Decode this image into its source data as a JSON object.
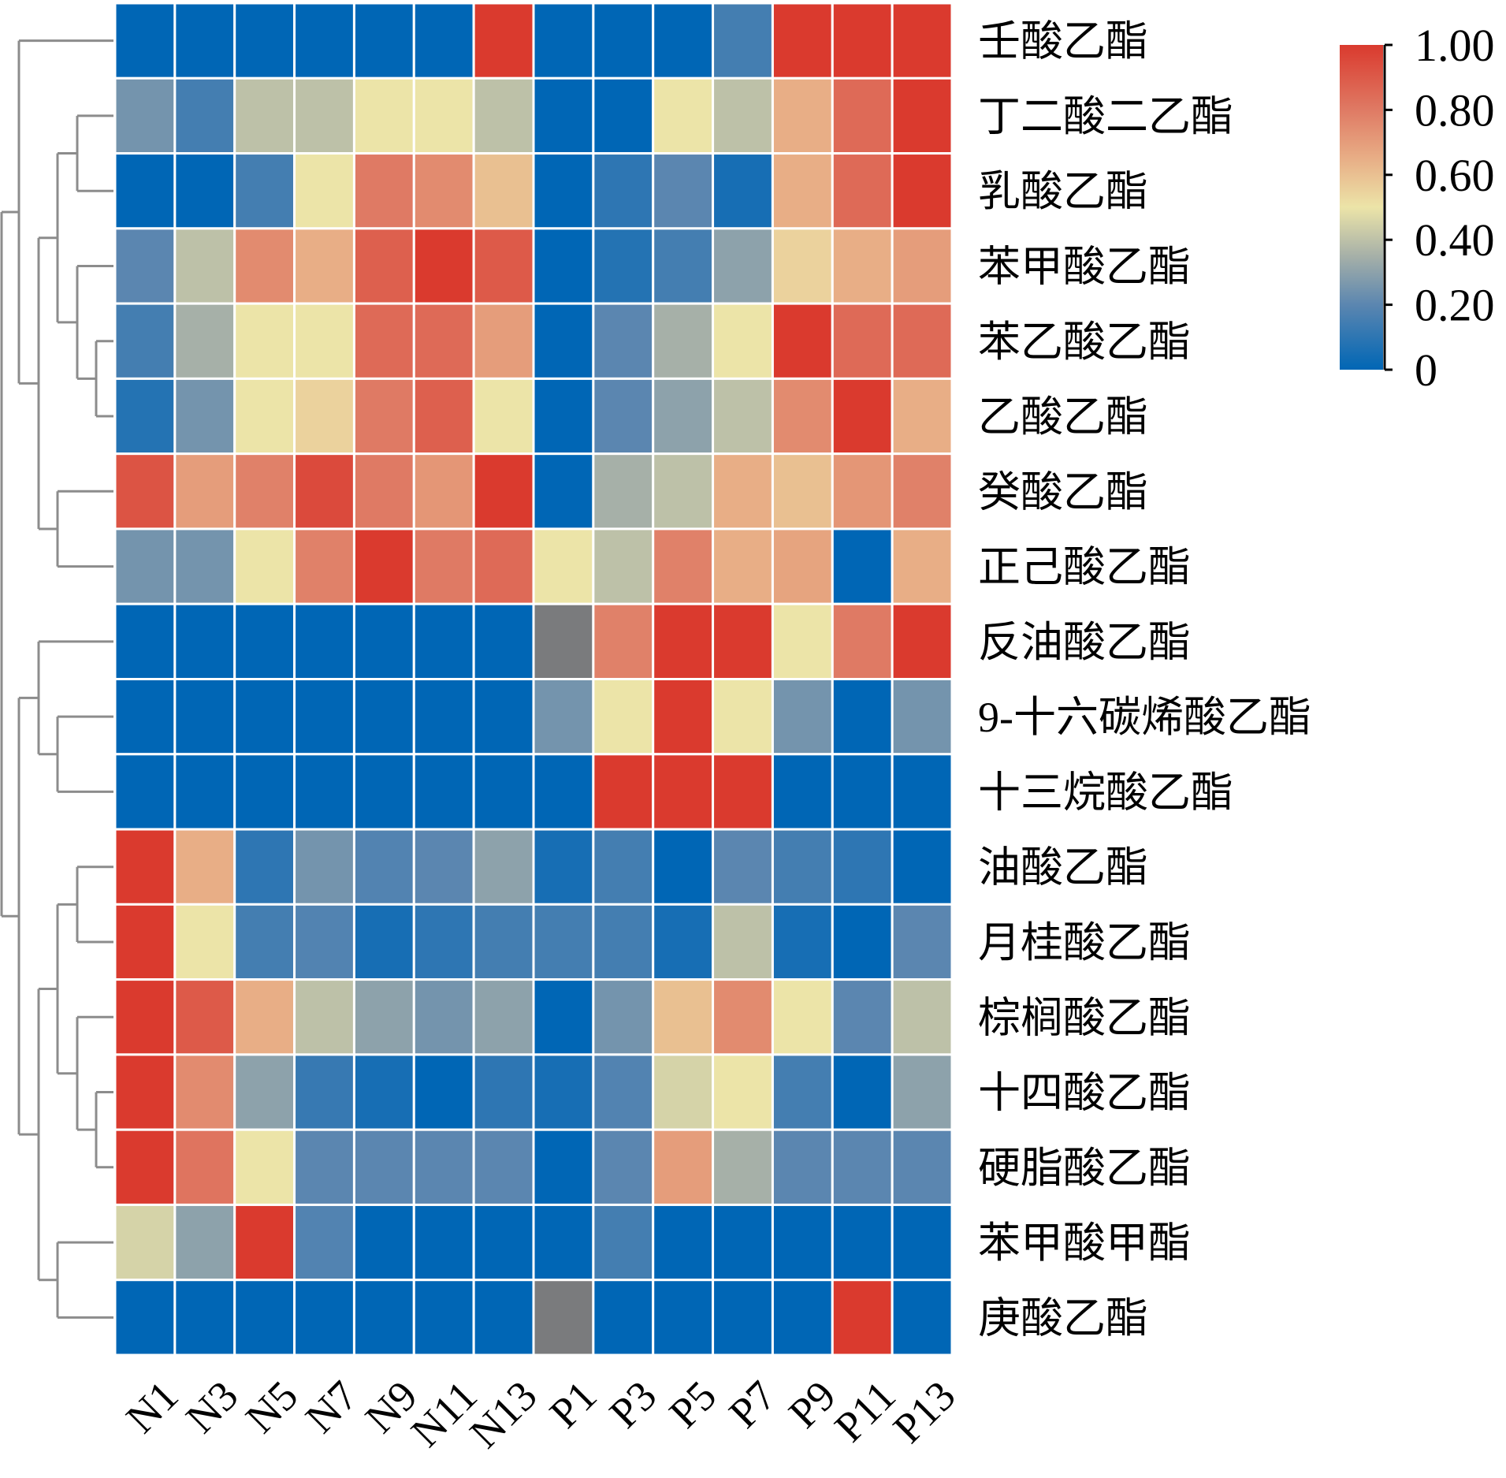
{
  "chart_data": {
    "type": "heatmap",
    "title": "",
    "columns": [
      "N1",
      "N3",
      "N5",
      "N7",
      "N9",
      "N11",
      "N13",
      "P1",
      "P3",
      "P5",
      "P7",
      "P9",
      "P11",
      "P13"
    ],
    "rows": [
      "壬酸乙酯",
      "丁二酸二乙酯",
      "乳酸乙酯",
      "苯甲酸乙酯",
      "苯乙酸乙酯",
      "乙酸乙酯",
      "癸酸乙酯",
      "正己酸乙酯",
      "反油酸乙酯",
      "9-十六碳烯酸乙酯",
      "十三烷酸乙酯",
      "油酸乙酯",
      "月桂酸乙酯",
      "棕榈酸乙酯",
      "十四酸乙酯",
      "硬脂酸乙酯",
      "苯甲酸甲酯",
      "庚酸乙酯"
    ],
    "values": [
      [
        0,
        0,
        0,
        0,
        0,
        0,
        1,
        0,
        0,
        0,
        0.15,
        1,
        1,
        1
      ],
      [
        0.25,
        0.15,
        0.4,
        0.4,
        0.5,
        0.5,
        0.4,
        0,
        0,
        0.5,
        0.4,
        0.65,
        0.85,
        1
      ],
      [
        0,
        0,
        0.15,
        0.5,
        0.8,
        0.75,
        0.6,
        0,
        0.1,
        0.2,
        0.05,
        0.65,
        0.85,
        1
      ],
      [
        0.2,
        0.4,
        0.75,
        0.65,
        0.88,
        1,
        0.9,
        0,
        0.08,
        0.15,
        0.3,
        0.55,
        0.65,
        0.7
      ],
      [
        0.15,
        0.35,
        0.5,
        0.5,
        0.85,
        0.85,
        0.7,
        0,
        0.2,
        0.35,
        0.5,
        1,
        0.85,
        0.85
      ],
      [
        0.08,
        0.25,
        0.5,
        0.55,
        0.8,
        0.88,
        0.5,
        0,
        0.2,
        0.3,
        0.4,
        0.75,
        1,
        0.65
      ],
      [
        0.92,
        0.7,
        0.78,
        0.95,
        0.8,
        0.72,
        1,
        0,
        0.35,
        0.4,
        0.65,
        0.6,
        0.72,
        0.78
      ],
      [
        0.25,
        0.25,
        0.5,
        0.78,
        1,
        0.8,
        0.85,
        0.5,
        0.4,
        0.78,
        0.65,
        0.68,
        0,
        0.65
      ],
      [
        0,
        0,
        0,
        0,
        0,
        0,
        0,
        null,
        0.78,
        1,
        1,
        0.5,
        0.8,
        1
      ],
      [
        0,
        0,
        0,
        0,
        0,
        0,
        0,
        0.25,
        0.5,
        1,
        0.5,
        0.25,
        0,
        0.25
      ],
      [
        0,
        0,
        0,
        0,
        0,
        0,
        0,
        0,
        1,
        1,
        1,
        0,
        0,
        0
      ],
      [
        1,
        0.65,
        0.1,
        0.25,
        0.18,
        0.2,
        0.3,
        0.05,
        0.15,
        0,
        0.2,
        0.15,
        0.1,
        0
      ],
      [
        1,
        0.5,
        0.15,
        0.18,
        0.05,
        0.1,
        0.15,
        0.15,
        0.15,
        0.05,
        0.4,
        0.05,
        0,
        0.2
      ],
      [
        1,
        0.9,
        0.65,
        0.4,
        0.3,
        0.25,
        0.3,
        0,
        0.25,
        0.6,
        0.75,
        0.5,
        0.2,
        0.4
      ],
      [
        1,
        0.75,
        0.3,
        0.12,
        0.05,
        0,
        0.1,
        0.05,
        0.18,
        0.45,
        0.5,
        0.15,
        0,
        0.3
      ],
      [
        1,
        0.82,
        0.5,
        0.2,
        0.2,
        0.2,
        0.2,
        0,
        0.2,
        0.7,
        0.35,
        0.2,
        0.2,
        0.2
      ],
      [
        0.45,
        0.3,
        1,
        0.18,
        0,
        0,
        0,
        0,
        0.15,
        0,
        0,
        0,
        0,
        0
      ],
      [
        0,
        0,
        0,
        0,
        0,
        0,
        0,
        null,
        0,
        0,
        0,
        0,
        1,
        0
      ]
    ],
    "missing_color": "#7a7b7d",
    "colorbar": {
      "range": [
        0,
        1
      ],
      "ticks": [
        "0",
        "0.20",
        "0.40",
        "0.60",
        "0.80",
        "1.00"
      ],
      "tick_values": [
        0,
        0.2,
        0.4,
        0.6,
        0.8,
        1.0
      ],
      "stops": [
        [
          0,
          "#0066b5"
        ],
        [
          0.2,
          "#5b86b0"
        ],
        [
          0.35,
          "#a6b0a8"
        ],
        [
          0.5,
          "#ece4a8"
        ],
        [
          0.65,
          "#e8ae86"
        ],
        [
          0.8,
          "#df7a64"
        ],
        [
          1,
          "#da3a2e"
        ]
      ],
      "placement": "top-right"
    },
    "row_dendrogram": true
  }
}
